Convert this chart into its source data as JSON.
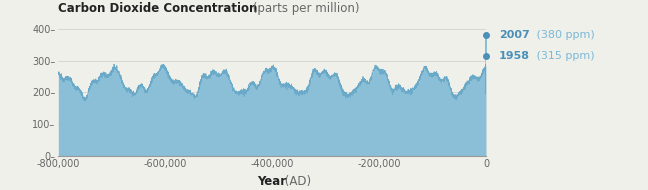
{
  "title_bold": "Carbon Dioxide Concentration",
  "title_normal": " (parts per million)",
  "xlabel_bold": "Year",
  "xlabel_normal": " (AD)",
  "xlim": [
    -800000,
    0
  ],
  "ylim": [
    0,
    420
  ],
  "yticks": [
    0,
    100,
    200,
    300,
    400
  ],
  "ytick_labels": [
    "0–",
    "100–",
    "200–",
    "300–",
    "400–"
  ],
  "xticks": [
    -800000,
    -600000,
    -400000,
    -200000,
    0
  ],
  "xtick_labels": [
    "-800,000",
    "-600,000",
    "-400,000",
    "-200,000",
    "0"
  ],
  "fill_color": "#8bbfd8",
  "line_color": "#6aaac8",
  "bg_color": "#f0f0ea",
  "annotation_color": "#7ab8d8",
  "annotation_bold_color": "#4a90b8",
  "year_2007_ppm": 380,
  "year_1958_ppm": 315,
  "annotation_text_2007_bold": "2007",
  "annotation_text_2007_normal": " (380 ppm)",
  "annotation_text_1958_bold": "1958",
  "annotation_text_1958_normal": " (315 ppm)"
}
